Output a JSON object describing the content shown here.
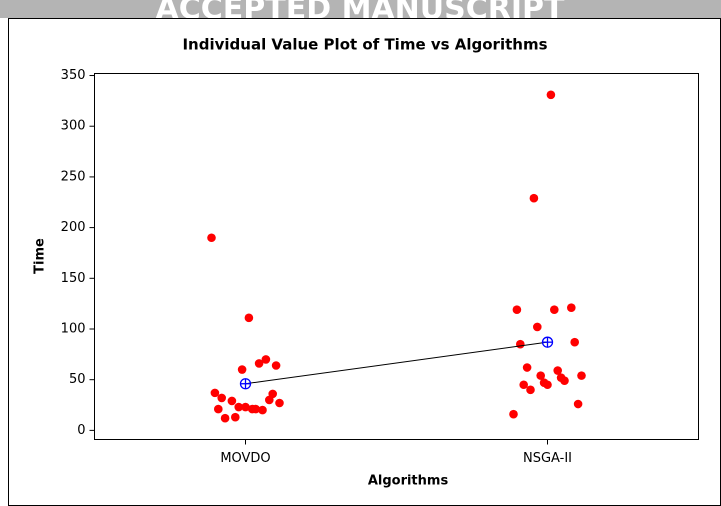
{
  "header_text": "ACCEPTED MANUSCRIPT",
  "chart_data": {
    "type": "individual_value",
    "title": "Individual Value Plot of Time vs Algorithms",
    "x_label": "Algorithms",
    "y_label": "Time",
    "categories": [
      "MOVDO",
      "NSGA-II"
    ],
    "groups": [
      [
        190,
        70,
        111,
        29,
        37,
        30,
        21,
        13,
        21,
        36,
        21,
        23,
        32,
        64,
        66,
        60,
        12,
        27,
        20,
        23
      ],
      [
        331,
        229,
        119,
        121,
        119,
        102,
        85,
        87,
        59,
        54,
        45,
        26,
        52,
        47,
        62,
        54,
        49,
        45,
        40,
        16
      ]
    ],
    "means": [
      46,
      87
    ],
    "point_color": "#ff0000",
    "mean_color": "#0000ff",
    "ylim": [
      -9,
      352
    ],
    "yticks": [
      0,
      50,
      100,
      150,
      200,
      250,
      300,
      350
    ]
  }
}
